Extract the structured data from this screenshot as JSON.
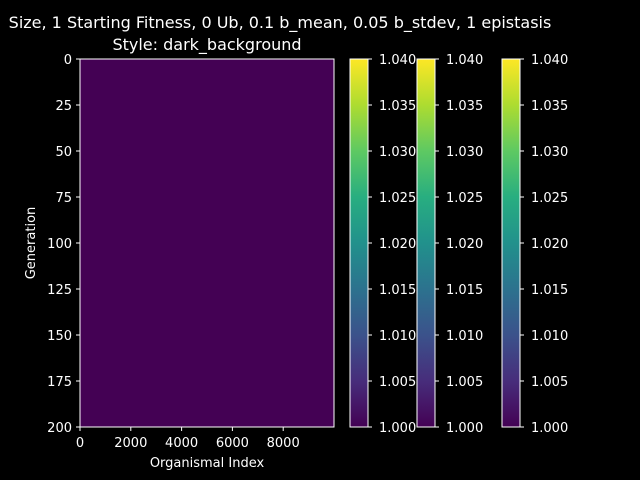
{
  "title_line1": "Size, 1 Starting Fitness, 0 Ub, 0.1 b_mean, 0.05 b_stdev, 1 epistasis",
  "title_line2": "Style: dark_background",
  "colors": {
    "background": "#000000",
    "foreground": "#ffffff",
    "heatmap_fill": "#440154"
  },
  "chart_data": {
    "type": "heatmap",
    "xlabel": "Organismal Index",
    "ylabel": "Generation",
    "xlim": [
      0,
      10000
    ],
    "ylim": [
      200,
      0
    ],
    "x_ticks": [
      0,
      2000,
      4000,
      6000,
      8000
    ],
    "y_ticks": [
      0,
      25,
      50,
      75,
      100,
      125,
      150,
      175,
      200
    ],
    "value": 1.0,
    "colormap": "viridis",
    "colorbars": [
      {
        "vmin": 1.0,
        "vmax": 1.04,
        "ticks": [
          "1.000",
          "1.005",
          "1.010",
          "1.015",
          "1.020",
          "1.025",
          "1.030",
          "1.035",
          "1.040"
        ]
      },
      {
        "vmin": 1.0,
        "vmax": 1.04,
        "ticks": [
          "1.000",
          "1.005",
          "1.010",
          "1.015",
          "1.020",
          "1.025",
          "1.030",
          "1.035",
          "1.040"
        ]
      },
      {
        "vmin": 1.0,
        "vmax": 1.04,
        "ticks": [
          "1.000",
          "1.005",
          "1.010",
          "1.015",
          "1.020",
          "1.025",
          "1.030",
          "1.035",
          "1.040"
        ]
      }
    ]
  }
}
